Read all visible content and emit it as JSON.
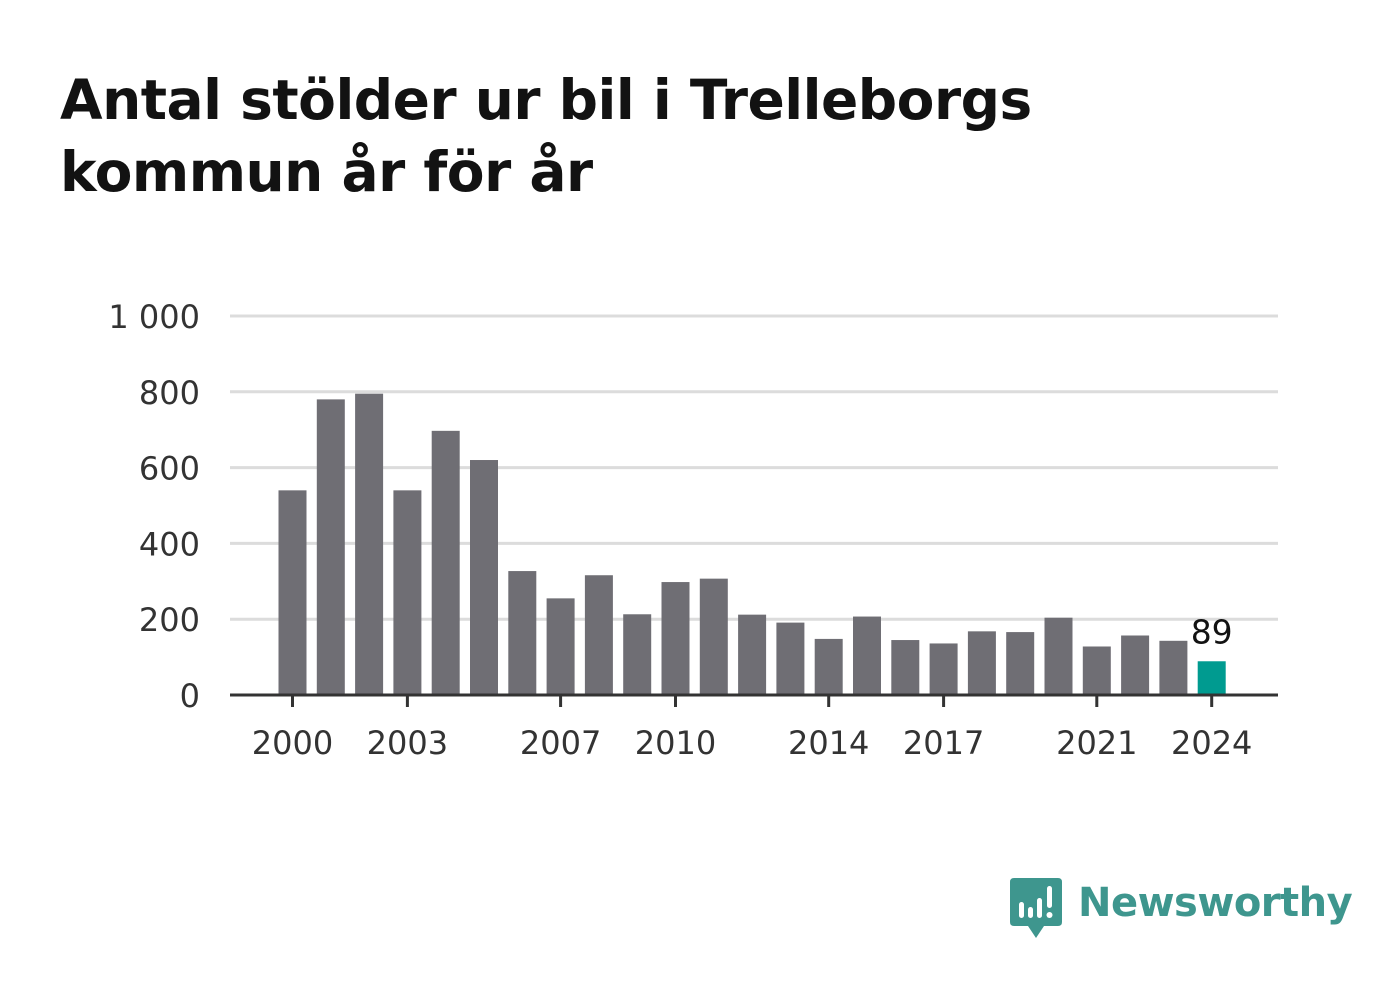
{
  "title": "Antal stölder ur bil i Trelleborgs kommun år för år",
  "brand": {
    "name": "Newsworthy",
    "color": "#3e968e"
  },
  "colors": {
    "bar": "#6f6e74",
    "highlight": "#009b90",
    "grid": "#dcdcdc",
    "axis": "#333333"
  },
  "chart_data": {
    "type": "bar",
    "title": "Antal stölder ur bil i Trelleborgs kommun år för år",
    "xlabel": "",
    "ylabel": "",
    "categories": [
      "2000",
      "2001",
      "2002",
      "2003",
      "2004",
      "2005",
      "2006",
      "2007",
      "2008",
      "2009",
      "2010",
      "2011",
      "2012",
      "2013",
      "2014",
      "2015",
      "2016",
      "2017",
      "2018",
      "2019",
      "2020",
      "2021",
      "2022",
      "2023",
      "2024"
    ],
    "values": [
      540,
      780,
      795,
      540,
      697,
      620,
      327,
      255,
      316,
      213,
      298,
      307,
      212,
      191,
      148,
      207,
      145,
      136,
      168,
      166,
      204,
      128,
      157,
      143,
      89
    ],
    "ylim": [
      0,
      1000
    ],
    "yticks": [
      {
        "value": 0,
        "label": "0"
      },
      {
        "value": 200,
        "label": "200"
      },
      {
        "value": 400,
        "label": "400"
      },
      {
        "value": 600,
        "label": "600"
      },
      {
        "value": 800,
        "label": "800"
      },
      {
        "value": 1000,
        "label": "1 000"
      }
    ],
    "xtick_labels": [
      "2000",
      "2003",
      "2007",
      "2010",
      "2014",
      "2017",
      "2021",
      "2024"
    ],
    "grid": true,
    "highlight": {
      "category": "2024",
      "label": "89"
    }
  }
}
